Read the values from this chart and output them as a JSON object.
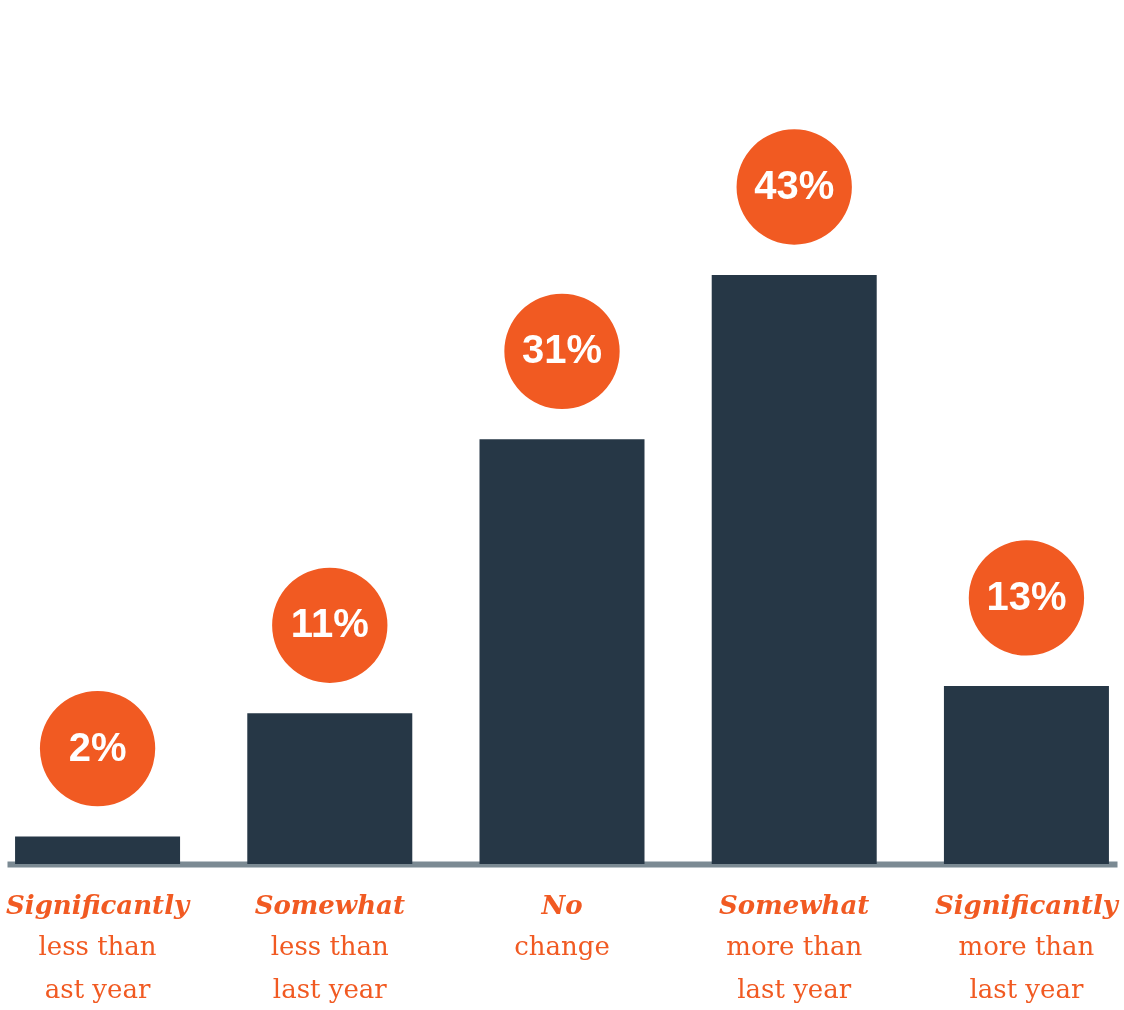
{
  "chart_data": {
    "type": "bar",
    "categories": [
      "Significantly\nless than\nast year",
      "Somewhat\nless than\nlast year",
      "No\nchange",
      "Somewhat\nmore than\nlast year",
      "Significantly\nmore than\nlast year"
    ],
    "values": [
      2,
      11,
      31,
      43,
      13
    ],
    "value_labels": [
      "2%",
      "11%",
      "31%",
      "43%",
      "13%"
    ],
    "color": "#263746"
  }
}
